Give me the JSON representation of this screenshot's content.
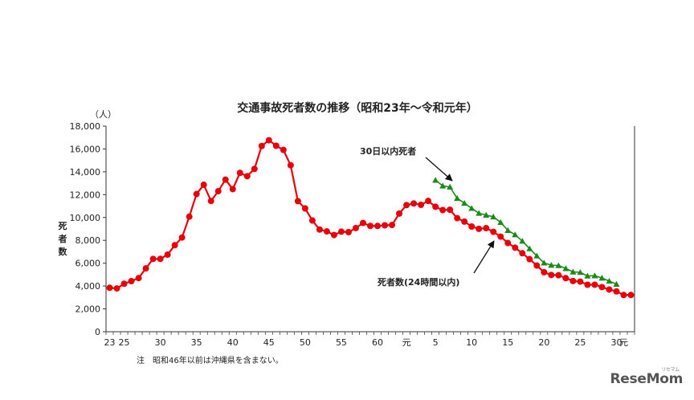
{
  "chart_data": {
    "type": "line",
    "title": "交通事故死者数の推移（昭和23年～令和元年）",
    "unit_label": "（人）",
    "ylabel": "死者数",
    "ylim": [
      0,
      18000
    ],
    "y_ticks": [
      0,
      2000,
      4000,
      6000,
      8000,
      10000,
      12000,
      14000,
      16000,
      18000
    ],
    "y_tick_labels": [
      "0",
      "2,000",
      "4,000",
      "6,000",
      "8,000",
      "10,000",
      "12,000",
      "14,000",
      "16,000",
      "18,000"
    ],
    "x_ticks": [
      {
        "index": 0,
        "label": "23"
      },
      {
        "index": 2,
        "label": "25"
      },
      {
        "index": 7,
        "label": "30"
      },
      {
        "index": 12,
        "label": "35"
      },
      {
        "index": 17,
        "label": "40"
      },
      {
        "index": 22,
        "label": "45"
      },
      {
        "index": 27,
        "label": "50"
      },
      {
        "index": 32,
        "label": "55"
      },
      {
        "index": 37,
        "label": "60"
      },
      {
        "index": 41,
        "label": "元"
      },
      {
        "index": 45,
        "label": "5"
      },
      {
        "index": 50,
        "label": "10"
      },
      {
        "index": 55,
        "label": "15"
      },
      {
        "index": 60,
        "label": "20"
      },
      {
        "index": 65,
        "label": "25"
      },
      {
        "index": 70,
        "label": "30"
      },
      {
        "index": 71,
        "label": "元"
      }
    ],
    "series": [
      {
        "name": "死者数(24時間以内)",
        "color": "#e8000b",
        "marker": "circle",
        "start_index": 0,
        "values": [
          3848,
          3790,
          4202,
          4429,
          4696,
          5544,
          6374,
          6379,
          6751,
          7575,
          8248,
          10079,
          12055,
          12865,
          11445,
          12301,
          13318,
          12484,
          13904,
          13618,
          14256,
          16257,
          16765,
          16278,
          15918,
          14574,
          11432,
          10792,
          9734,
          8945,
          8783,
          8466,
          8760,
          8719,
          9073,
          9520,
          9262,
          9261,
          9317,
          9347,
          10344,
          11086,
          11227,
          11105,
          11451,
          10942,
          10649,
          10679,
          9942,
          9640,
          9211,
          9006,
          9066,
          8747,
          8326,
          7768,
          7358,
          6871,
          6352,
          5796,
          5209,
          4968,
          4948,
          4691,
          4438,
          4388,
          4113,
          4117,
          3904,
          3694,
          3532,
          3215,
          3215
        ]
      },
      {
        "name": "30日以内死者",
        "color": "#1a8a1a",
        "marker": "triangle",
        "start_index": 45,
        "values": [
          13269,
          12768,
          12670,
          11674,
          11254,
          10805,
          10372,
          10212,
          10060,
          9575,
          8877,
          8492,
          7931,
          7272,
          6639,
          6023,
          5828,
          5796,
          5535,
          5237,
          5196,
          4885,
          4904,
          4698,
          4431,
          4166
        ]
      }
    ],
    "annotations": [
      {
        "text": "30日以内死者",
        "series": "30日以内死者"
      },
      {
        "text": "死者数(24時間以内)",
        "series": "死者数(24時間以内)"
      }
    ],
    "note": "注　昭和46年以前は沖縄県を含まない。",
    "grid": false,
    "legend": "none"
  },
  "watermark": {
    "text": "ReseMom",
    "sub": "リセマム"
  }
}
